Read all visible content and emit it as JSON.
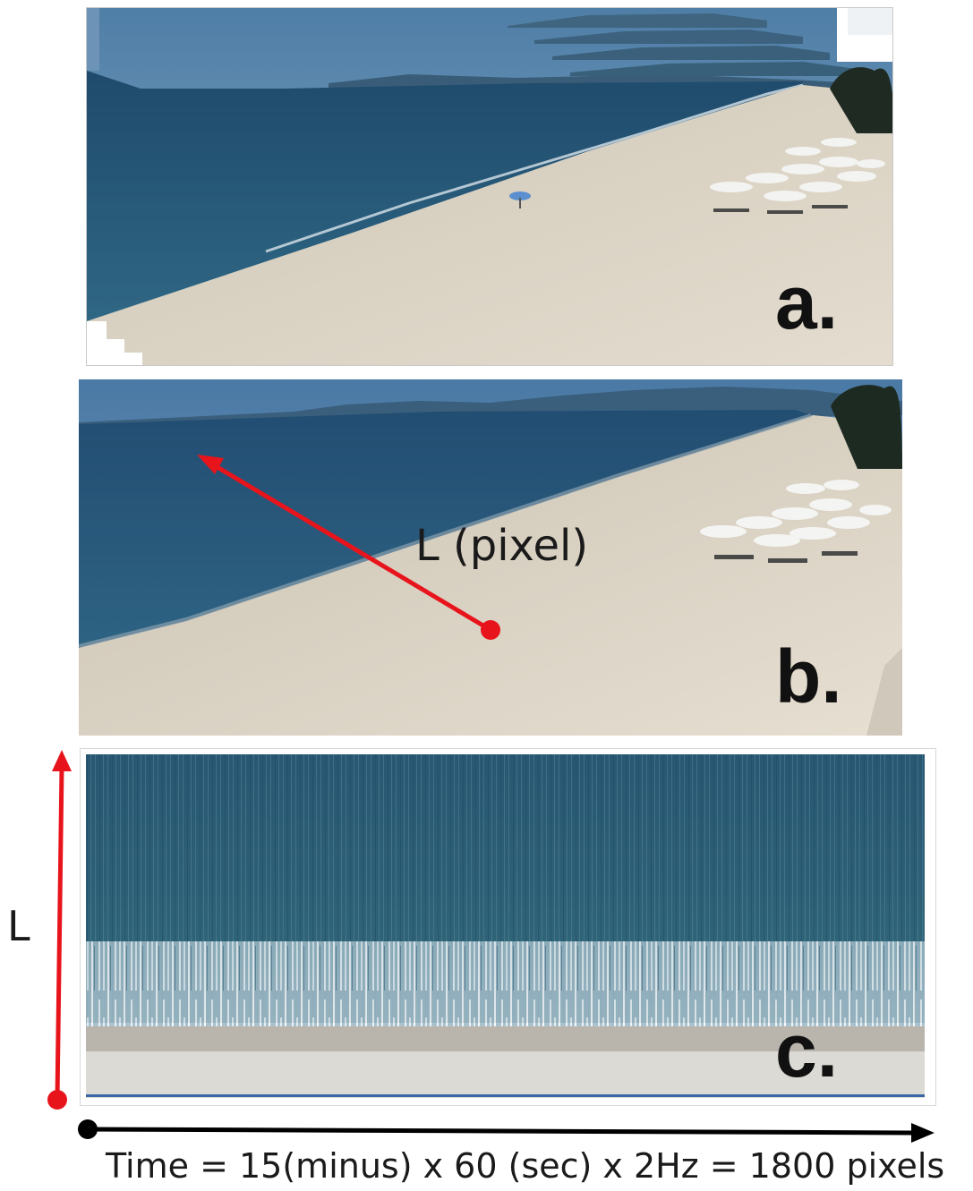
{
  "panels": {
    "a": {
      "label": "a."
    },
    "b": {
      "label": "b.",
      "annotation": "L (pixel)"
    },
    "c": {
      "label": "c.",
      "axis_label": "L"
    }
  },
  "time_axis": {
    "label": "Time = 15(minus) x 60 (sec) x 2Hz = 1800 pixels"
  },
  "colors": {
    "arrow_red": "#e8141c",
    "arrow_black": "#000000",
    "sea": "#2b5775",
    "sand": "#d8d1c3",
    "sky": "#5f87ad"
  }
}
